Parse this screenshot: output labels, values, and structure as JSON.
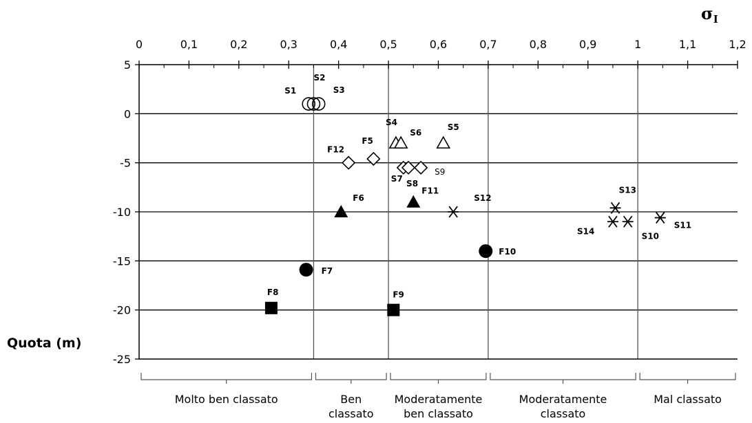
{
  "chart_data": {
    "type": "scatter",
    "x_axis": {
      "symbol": "σ",
      "subscript": "I",
      "ticks": [
        "0",
        "0,1",
        "0,2",
        "0,3",
        "0,4",
        "0,5",
        "0,6",
        "0,7",
        "0,8",
        "0,9",
        "1",
        "1,1",
        "1,2"
      ],
      "range": [
        0,
        1.2
      ],
      "position": "top"
    },
    "y_axis": {
      "label": "Quota (m)",
      "ticks": [
        "5",
        "0",
        "-5",
        "-10",
        "-15",
        "-20",
        "-25"
      ],
      "range": [
        -25,
        5
      ]
    },
    "grid": "horizontal",
    "class_boundaries": [
      0.35,
      0.5,
      0.7,
      1.0
    ],
    "classes": [
      {
        "lines": [
          "Molto ben classato"
        ],
        "range": [
          0,
          0.35
        ]
      },
      {
        "lines": [
          "Ben",
          "classato"
        ],
        "range": [
          0.35,
          0.5
        ]
      },
      {
        "lines": [
          "Moderatamente",
          "ben classato"
        ],
        "range": [
          0.5,
          0.7
        ]
      },
      {
        "lines": [
          "Moderatamente",
          "classato"
        ],
        "range": [
          0.7,
          1.0
        ]
      },
      {
        "lines": [
          "Mal classato"
        ],
        "range": [
          1.0,
          1.2
        ]
      }
    ],
    "points": [
      {
        "label": "S1",
        "x": 0.34,
        "y": 1,
        "marker": "circle-open"
      },
      {
        "label": "S2",
        "x": 0.35,
        "y": 1,
        "marker": "circle-open"
      },
      {
        "label": "S3",
        "x": 0.36,
        "y": 1,
        "marker": "circle-open"
      },
      {
        "label": "S4",
        "x": 0.515,
        "y": -3,
        "marker": "triangle-open"
      },
      {
        "label": "S6",
        "x": 0.525,
        "y": -3,
        "marker": "triangle-open"
      },
      {
        "label": "S5",
        "x": 0.61,
        "y": -3,
        "marker": "triangle-open"
      },
      {
        "label": "F12",
        "x": 0.42,
        "y": -5,
        "marker": "diamond-open"
      },
      {
        "label": "F5",
        "x": 0.47,
        "y": -4.6,
        "marker": "diamond-open"
      },
      {
        "label": "S7",
        "x": 0.53,
        "y": -5.5,
        "marker": "diamond-open"
      },
      {
        "label": "S8",
        "x": 0.54,
        "y": -5.5,
        "marker": "diamond-open"
      },
      {
        "label": "S9",
        "x": 0.565,
        "y": -5.5,
        "marker": "diamond-open"
      },
      {
        "label": "F6",
        "x": 0.405,
        "y": -10,
        "marker": "triangle-filled"
      },
      {
        "label": "F11",
        "x": 0.55,
        "y": -9,
        "marker": "triangle-filled"
      },
      {
        "label": "S12",
        "x": 0.63,
        "y": -10,
        "marker": "asterisk"
      },
      {
        "label": "S13",
        "x": 0.955,
        "y": -9.6,
        "marker": "asterisk"
      },
      {
        "label": "S14",
        "x": 0.95,
        "y": -11,
        "marker": "asterisk"
      },
      {
        "label": "S10",
        "x": 0.98,
        "y": -11,
        "marker": "asterisk"
      },
      {
        "label": "S11",
        "x": 1.045,
        "y": -10.6,
        "marker": "asterisk"
      },
      {
        "label": "F10",
        "x": 0.695,
        "y": -14,
        "marker": "circle-filled"
      },
      {
        "label": "F7",
        "x": 0.335,
        "y": -15.9,
        "marker": "circle-filled"
      },
      {
        "label": "F8",
        "x": 0.265,
        "y": -19.8,
        "marker": "square-filled"
      },
      {
        "label": "F9",
        "x": 0.51,
        "y": -20,
        "marker": "square-filled"
      }
    ]
  }
}
